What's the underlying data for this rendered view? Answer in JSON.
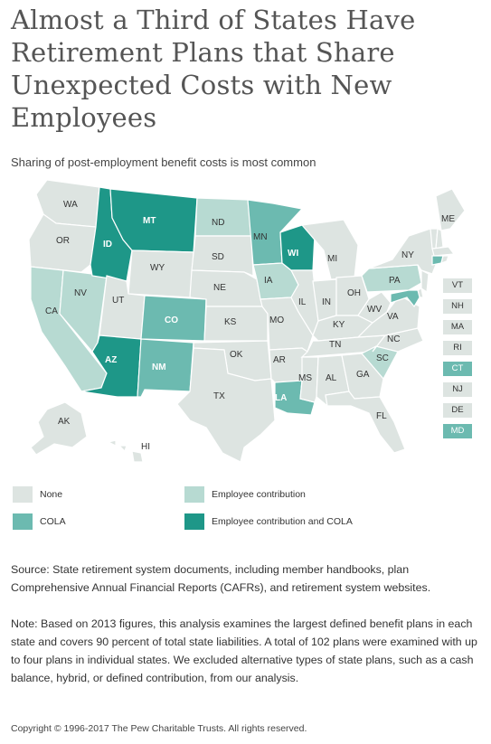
{
  "title": "Almost a Third of States Have Retirement Plans that Share Unexpected Costs with New Employees",
  "subtitle": "Sharing of post-employment benefit costs is most common",
  "colors": {
    "none": "#dde4e1",
    "employee_contribution": "#b7dad2",
    "cola": "#6cbab0",
    "both": "#1e9788",
    "border": "#ffffff"
  },
  "legend": {
    "none": "None",
    "employee_contribution": "Employee contribution",
    "cola": "COLA",
    "both": "Employee contribution and COLA"
  },
  "states": {
    "WA": "none",
    "OR": "none",
    "CA": "employee_contribution",
    "NV": "employee_contribution",
    "ID": "both",
    "MT": "both",
    "WY": "none",
    "UT": "none",
    "AZ": "both",
    "CO": "cola",
    "NM": "cola",
    "ND": "employee_contribution",
    "SD": "none",
    "NE": "none",
    "KS": "none",
    "OK": "none",
    "TX": "none",
    "MN": "cola",
    "IA": "employee_contribution",
    "MO": "none",
    "AR": "none",
    "LA": "cola",
    "WI": "both",
    "IL": "none",
    "MI": "none",
    "IN": "none",
    "OH": "none",
    "KY": "none",
    "TN": "none",
    "MS": "none",
    "AL": "none",
    "GA": "none",
    "FL": "none",
    "SC": "employee_contribution",
    "NC": "none",
    "VA": "none",
    "WV": "none",
    "PA": "employee_contribution",
    "NY": "none",
    "ME": "none",
    "AK": "none",
    "HI": "none",
    "VT": "none",
    "NH": "none",
    "MA": "none",
    "RI": "none",
    "CT": "cola",
    "NJ": "none",
    "DE": "none",
    "MD": "cola"
  },
  "small_states": [
    "VT",
    "NH",
    "MA",
    "RI",
    "CT",
    "NJ",
    "DE",
    "MD"
  ],
  "source": "Source: State retirement system documents, including member handbooks, plan Comprehensive Annual Financial Reports (CAFRs), and retirement system websites.",
  "note": "Note: Based on 2013 figures, this analysis examines the largest defined benefit plans in each state and covers 90 percent of total state liabilities. A total of 102 plans were examined with up to four plans in individual states. We excluded alternative types of state plans, such as a cash balance, hybrid, or defined contribution, from our analysis.",
  "copyright": "Copyright © 1996-2017 The Pew Charitable Trusts. All rights reserved."
}
